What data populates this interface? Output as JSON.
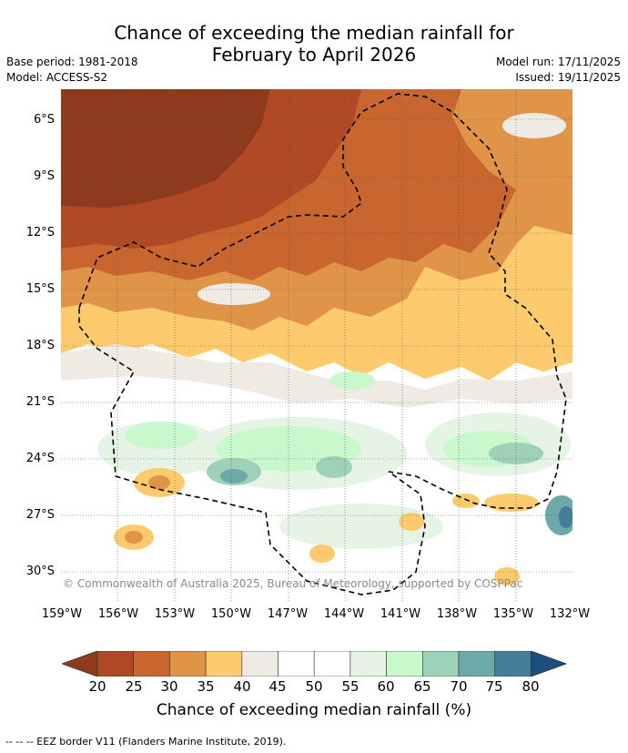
{
  "title_line1": "Chance of exceeding the median rainfall for",
  "title_line2": "February to April 2026",
  "base_period": "Base period: 1981-2018",
  "model": "Model: ACCESS-S2",
  "model_run": "Model run: 17/11/2025",
  "issued": "Issued: 19/11/2025",
  "copyright": "© Commonwealth of Australia 2025, Bureau of Meteorology, supported by COSPPac",
  "lat_labels": [
    "6°S",
    "9°S",
    "12°S",
    "15°S",
    "18°S",
    "21°S",
    "24°S",
    "27°S",
    "30°S"
  ],
  "lon_labels": [
    "159°W",
    "156°W",
    "153°W",
    "150°W",
    "147°W",
    "144°W",
    "141°W",
    "138°W",
    "135°W",
    "132°W"
  ],
  "colorbar": {
    "title": "Chance of exceeding median rainfall (%)",
    "ticks": [
      "20",
      "25",
      "30",
      "35",
      "40",
      "45",
      "50",
      "55",
      "60",
      "65",
      "70",
      "75",
      "80"
    ],
    "colors": [
      "#8e3a1f",
      "#b04a26",
      "#c96630",
      "#e09448",
      "#fdcb6e",
      "#efebe4",
      "#ffffff",
      "#ffffff",
      "#e6f4e6",
      "#c8f8cc",
      "#9ed2b8",
      "#6ea9a9",
      "#447f9a",
      "#1a4f7e"
    ]
  },
  "footer": "--  --  -- EEZ border V11 (Flanders Marine Institute, 2019)."
}
